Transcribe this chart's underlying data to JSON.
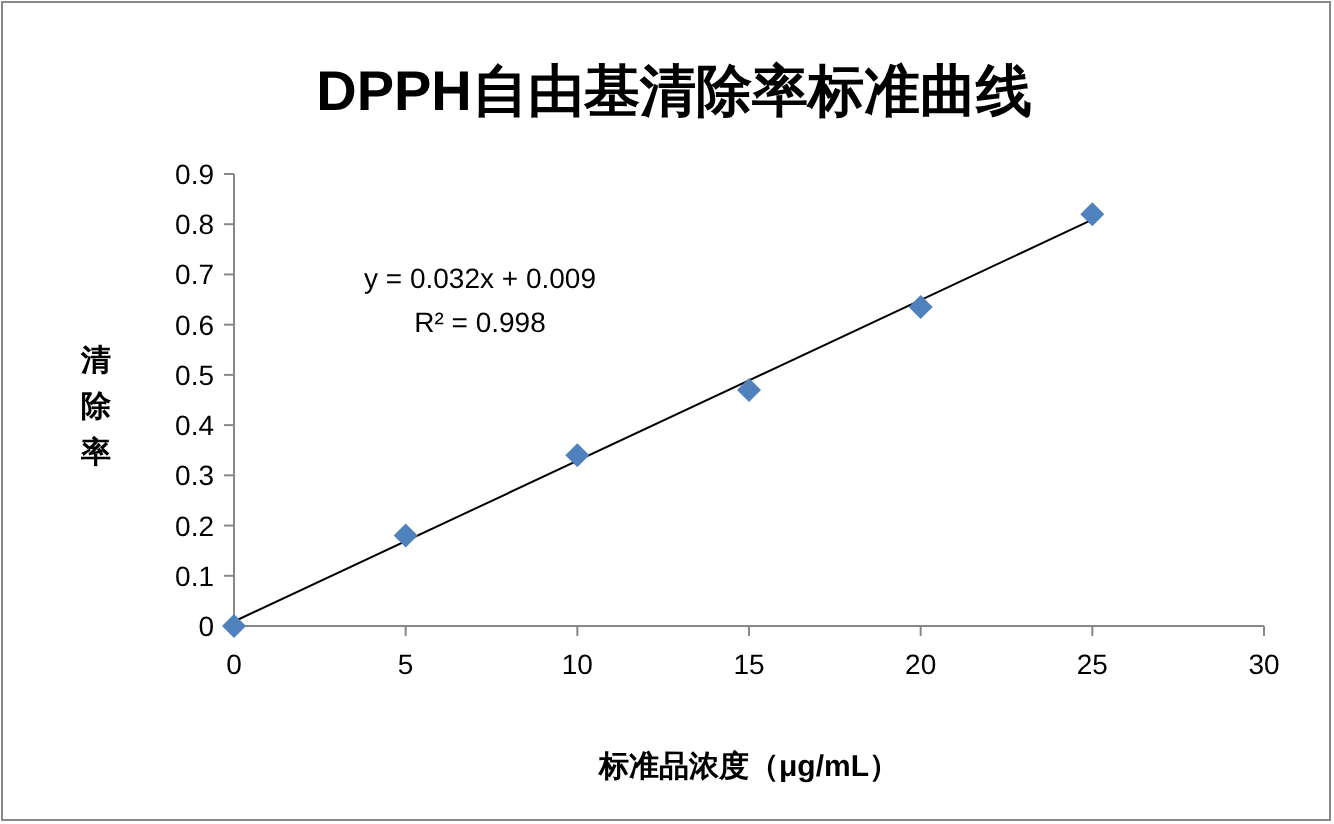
{
  "chart_data": {
    "type": "scatter",
    "title": "DPPH自由基清除率标准曲线",
    "xlabel": "标准品浓度（μg/mL）",
    "ylabel": "清除率",
    "x": [
      0,
      5,
      10,
      15,
      20,
      25
    ],
    "series": [
      {
        "color": "#4f81bd",
        "marker": "diamond",
        "values": [
          0,
          0.18,
          0.34,
          0.47,
          0.635,
          0.82
        ]
      },
      {
        "type": "line",
        "marker": "none",
        "color": "#000000",
        "x": [
          0,
          25
        ],
        "values": [
          0.009,
          0.809
        ]
      }
    ],
    "xlim": [
      0,
      30
    ],
    "xticks": [
      0,
      5,
      10,
      15,
      20,
      25,
      30
    ],
    "ylim": [
      0,
      0.9
    ],
    "yticks": [
      0,
      0.1,
      0.2,
      0.3,
      0.4,
      0.5,
      0.6,
      0.7,
      0.8,
      0.9
    ],
    "grid": false,
    "annotations": [
      "y = 0.032x + 0.009",
      "R² = 0.998"
    ]
  }
}
